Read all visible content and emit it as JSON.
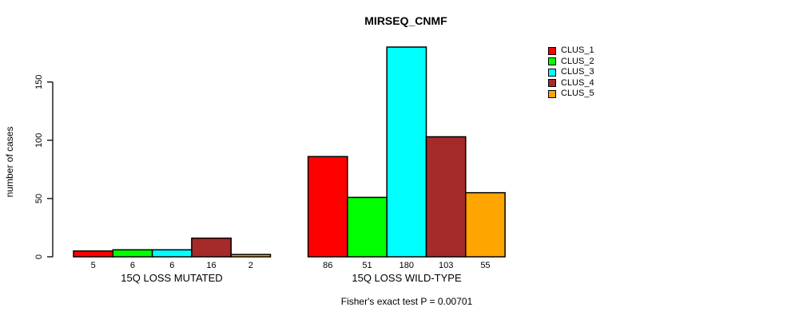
{
  "page": {
    "background": "#ffffff",
    "text_color": "#000000"
  },
  "chart_data": {
    "type": "bar",
    "title": "MIRSEQ_CNMF",
    "xlabel": "",
    "ylabel": "number of cases",
    "categories": [
      "15Q LOSS MUTATED",
      "15Q LOSS WILD-TYPE"
    ],
    "series": [
      {
        "name": "CLUS_1",
        "color": "#FF0000",
        "values": [
          5,
          86
        ]
      },
      {
        "name": "CLUS_2",
        "color": "#00FF00",
        "values": [
          6,
          51
        ]
      },
      {
        "name": "CLUS_3",
        "color": "#00FFFF",
        "values": [
          6,
          180
        ]
      },
      {
        "name": "CLUS_4",
        "color": "#A52A2A",
        "values": [
          16,
          103
        ]
      },
      {
        "name": "CLUS_5",
        "color": "#FFA500",
        "values": [
          2,
          55
        ]
      }
    ],
    "bar_value_labels": true,
    "yticks": [
      0,
      50,
      100,
      150
    ],
    "ylim": [
      0,
      180
    ],
    "grid": false,
    "legend_position": "right",
    "annotation": "Fisher's exact test P = 0.00701"
  }
}
